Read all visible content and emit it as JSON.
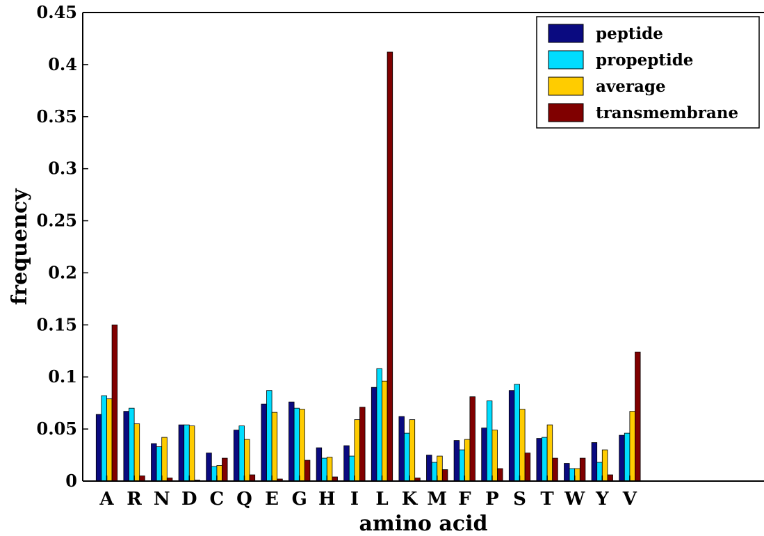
{
  "chart_data": {
    "type": "bar",
    "title": "",
    "xlabel": "amino acid",
    "ylabel": "frequency",
    "ylim": [
      0,
      0.45
    ],
    "yticks": [
      "0",
      "0.05",
      "0.1",
      "0.15",
      "0.2",
      "0.25",
      "0.3",
      "0.35",
      "0.4",
      "0.45"
    ],
    "grid": false,
    "legend_position": "top-right",
    "categories": [
      "A",
      "R",
      "N",
      "D",
      "C",
      "Q",
      "E",
      "G",
      "H",
      "I",
      "L",
      "K",
      "M",
      "F",
      "P",
      "S",
      "T",
      "W",
      "Y",
      "V"
    ],
    "series": [
      {
        "name": "peptide",
        "color": "#0a0a80",
        "values": [
          0.064,
          0.067,
          0.036,
          0.054,
          0.027,
          0.049,
          0.074,
          0.076,
          0.032,
          0.034,
          0.09,
          0.062,
          0.025,
          0.039,
          0.051,
          0.087,
          0.041,
          0.017,
          0.037,
          0.044
        ]
      },
      {
        "name": "propeptide",
        "color": "#00ddff",
        "values": [
          0.082,
          0.07,
          0.033,
          0.054,
          0.014,
          0.053,
          0.087,
          0.07,
          0.022,
          0.024,
          0.108,
          0.046,
          0.018,
          0.03,
          0.077,
          0.093,
          0.042,
          0.012,
          0.018,
          0.046
        ]
      },
      {
        "name": "average",
        "color": "#ffcc00",
        "values": [
          0.079,
          0.055,
          0.042,
          0.053,
          0.015,
          0.04,
          0.066,
          0.069,
          0.023,
          0.059,
          0.096,
          0.059,
          0.024,
          0.04,
          0.049,
          0.069,
          0.054,
          0.012,
          0.03,
          0.067
        ]
      },
      {
        "name": "transmembrane",
        "color": "#800000",
        "values": [
          0.15,
          0.005,
          0.003,
          0.001,
          0.022,
          0.006,
          0.002,
          0.02,
          0.004,
          0.071,
          0.412,
          0.003,
          0.011,
          0.081,
          0.012,
          0.027,
          0.022,
          0.022,
          0.006,
          0.124
        ]
      }
    ]
  }
}
